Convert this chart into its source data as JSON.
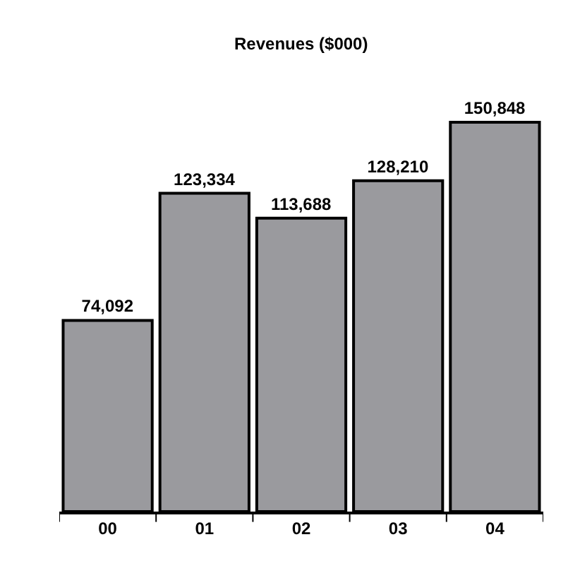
{
  "chart_data": {
    "type": "bar",
    "title": "Revenues ($000)",
    "categories": [
      "00",
      "01",
      "02",
      "03",
      "04"
    ],
    "values": [
      74092,
      123334,
      113688,
      128210,
      150848
    ],
    "value_labels": [
      "74,092",
      "123,334",
      "113,688",
      "128,210",
      "150,848"
    ],
    "color": "#9a9a9e",
    "legend": false
  }
}
